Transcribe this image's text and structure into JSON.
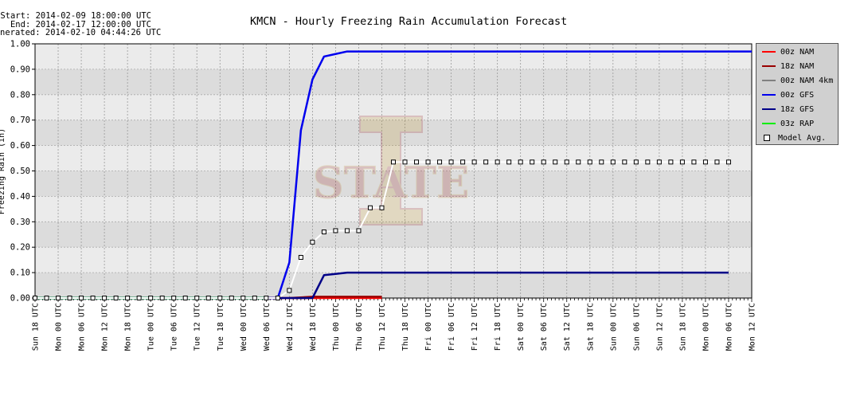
{
  "header": {
    "start": "Start: 2014-02-09 18:00:00 UTC",
    "end": "End: 2014-02-17 12:00:00 UTC",
    "generated": "nerated: 2014-02-10 04:44:26 UTC"
  },
  "chart_data": {
    "type": "line",
    "title": "KMCN - Hourly Freezing Rain Accumulation Forecast",
    "ylabel": "Freezing Rain (in)",
    "ylim": [
      0,
      1.0
    ],
    "yticks": [
      "0.00",
      "0.10",
      "0.20",
      "0.30",
      "0.40",
      "0.50",
      "0.60",
      "0.70",
      "0.80",
      "0.90",
      "1.00"
    ],
    "xlim": [
      0,
      186
    ],
    "x_unit": "hours after start (6-hour tick spacing)",
    "x_tick_labels": [
      "Sun 18 UTC",
      "Mon 00 UTC",
      "Mon 06 UTC",
      "Mon 12 UTC",
      "Mon 18 UTC",
      "Tue 00 UTC",
      "Tue 06 UTC",
      "Tue 12 UTC",
      "Tue 18 UTC",
      "Wed 00 UTC",
      "Wed 06 UTC",
      "Wed 12 UTC",
      "Wed 18 UTC",
      "Thu 00 UTC",
      "Thu 06 UTC",
      "Thu 12 UTC",
      "Thu 18 UTC",
      "Fri 00 UTC",
      "Fri 06 UTC",
      "Fri 12 UTC",
      "Fri 18 UTC",
      "Sat 00 UTC",
      "Sat 06 UTC",
      "Sat 12 UTC",
      "Sat 18 UTC",
      "Sun 00 UTC",
      "Sun 06 UTC",
      "Sun 12 UTC",
      "Sun 18 UTC",
      "Mon 00 UTC",
      "Mon 06 UTC",
      "Mon 12 UTC"
    ],
    "grid": true,
    "legend_position": "right",
    "series": [
      {
        "name": "00z NAM",
        "color": "#ff0000",
        "x": [
          0,
          60,
          75,
          90
        ],
        "y": [
          0,
          0,
          0,
          0
        ]
      },
      {
        "name": "18z NAM",
        "color": "#990000",
        "x": [
          66,
          72,
          78,
          90
        ],
        "y": [
          0,
          0.005,
          0.005,
          0.005
        ]
      },
      {
        "name": "00z NAM 4km",
        "color": "#808080",
        "x": [
          0,
          60
        ],
        "y": [
          0,
          0
        ]
      },
      {
        "name": "00z GFS",
        "color": "#0000ee",
        "x": [
          0,
          63,
          66,
          69,
          72,
          75,
          78,
          81,
          84,
          90,
          96,
          186
        ],
        "y": [
          0,
          0,
          0.14,
          0.66,
          0.86,
          0.95,
          0.96,
          0.97,
          0.97,
          0.97,
          0.97,
          0.97
        ]
      },
      {
        "name": "18z GFS",
        "color": "#000088",
        "x": [
          0,
          72,
          75,
          78,
          81,
          84,
          90,
          96,
          180
        ],
        "y": [
          0,
          0,
          0.09,
          0.095,
          0.1,
          0.1,
          0.1,
          0.1,
          0.1
        ]
      },
      {
        "name": "03z RAP",
        "color": "#00ee00",
        "x": [
          0,
          60
        ],
        "y": [
          0,
          0
        ]
      },
      {
        "name": "Model Avg.",
        "color": "#ffffff",
        "marker": "square",
        "x": [
          0,
          3,
          6,
          9,
          12,
          15,
          18,
          21,
          24,
          27,
          30,
          33,
          36,
          39,
          42,
          45,
          48,
          51,
          54,
          57,
          60,
          63,
          66,
          69,
          72,
          75,
          78,
          81,
          84,
          87,
          90,
          93,
          96,
          99,
          102,
          105,
          108,
          111,
          114,
          117,
          120,
          123,
          126,
          129,
          132,
          135,
          138,
          141,
          144,
          147,
          150,
          153,
          156,
          159,
          162,
          165,
          168,
          171,
          174,
          177,
          180
        ],
        "y": [
          0,
          0,
          0,
          0,
          0,
          0,
          0,
          0,
          0,
          0,
          0,
          0,
          0,
          0,
          0,
          0,
          0,
          0,
          0,
          0,
          0,
          0,
          0.03,
          0.16,
          0.22,
          0.26,
          0.265,
          0.265,
          0.265,
          0.355,
          0.355,
          0.535,
          0.535,
          0.535,
          0.535,
          0.535,
          0.535,
          0.535,
          0.535,
          0.535,
          0.535,
          0.535,
          0.535,
          0.535,
          0.535,
          0.535,
          0.535,
          0.535,
          0.535,
          0.535,
          0.535,
          0.535,
          0.535,
          0.535,
          0.535,
          0.535,
          0.535,
          0.535,
          0.535,
          0.535,
          0.535
        ]
      }
    ]
  },
  "legend": {
    "items": [
      {
        "label": "00z NAM",
        "color": "#ff0000",
        "kind": "line"
      },
      {
        "label": "18z NAM",
        "color": "#990000",
        "kind": "line"
      },
      {
        "label": "00z NAM 4km",
        "color": "#808080",
        "kind": "line"
      },
      {
        "label": "00z GFS",
        "color": "#0000ee",
        "kind": "line"
      },
      {
        "label": "18z GFS",
        "color": "#000088",
        "kind": "line"
      },
      {
        "label": "03z RAP",
        "color": "#00ee00",
        "kind": "line"
      },
      {
        "label": "Model Avg.",
        "color": "#ffffff",
        "kind": "square"
      }
    ]
  },
  "watermark": {
    "text": "STATE",
    "icon": "iowa-state-i-logo"
  }
}
